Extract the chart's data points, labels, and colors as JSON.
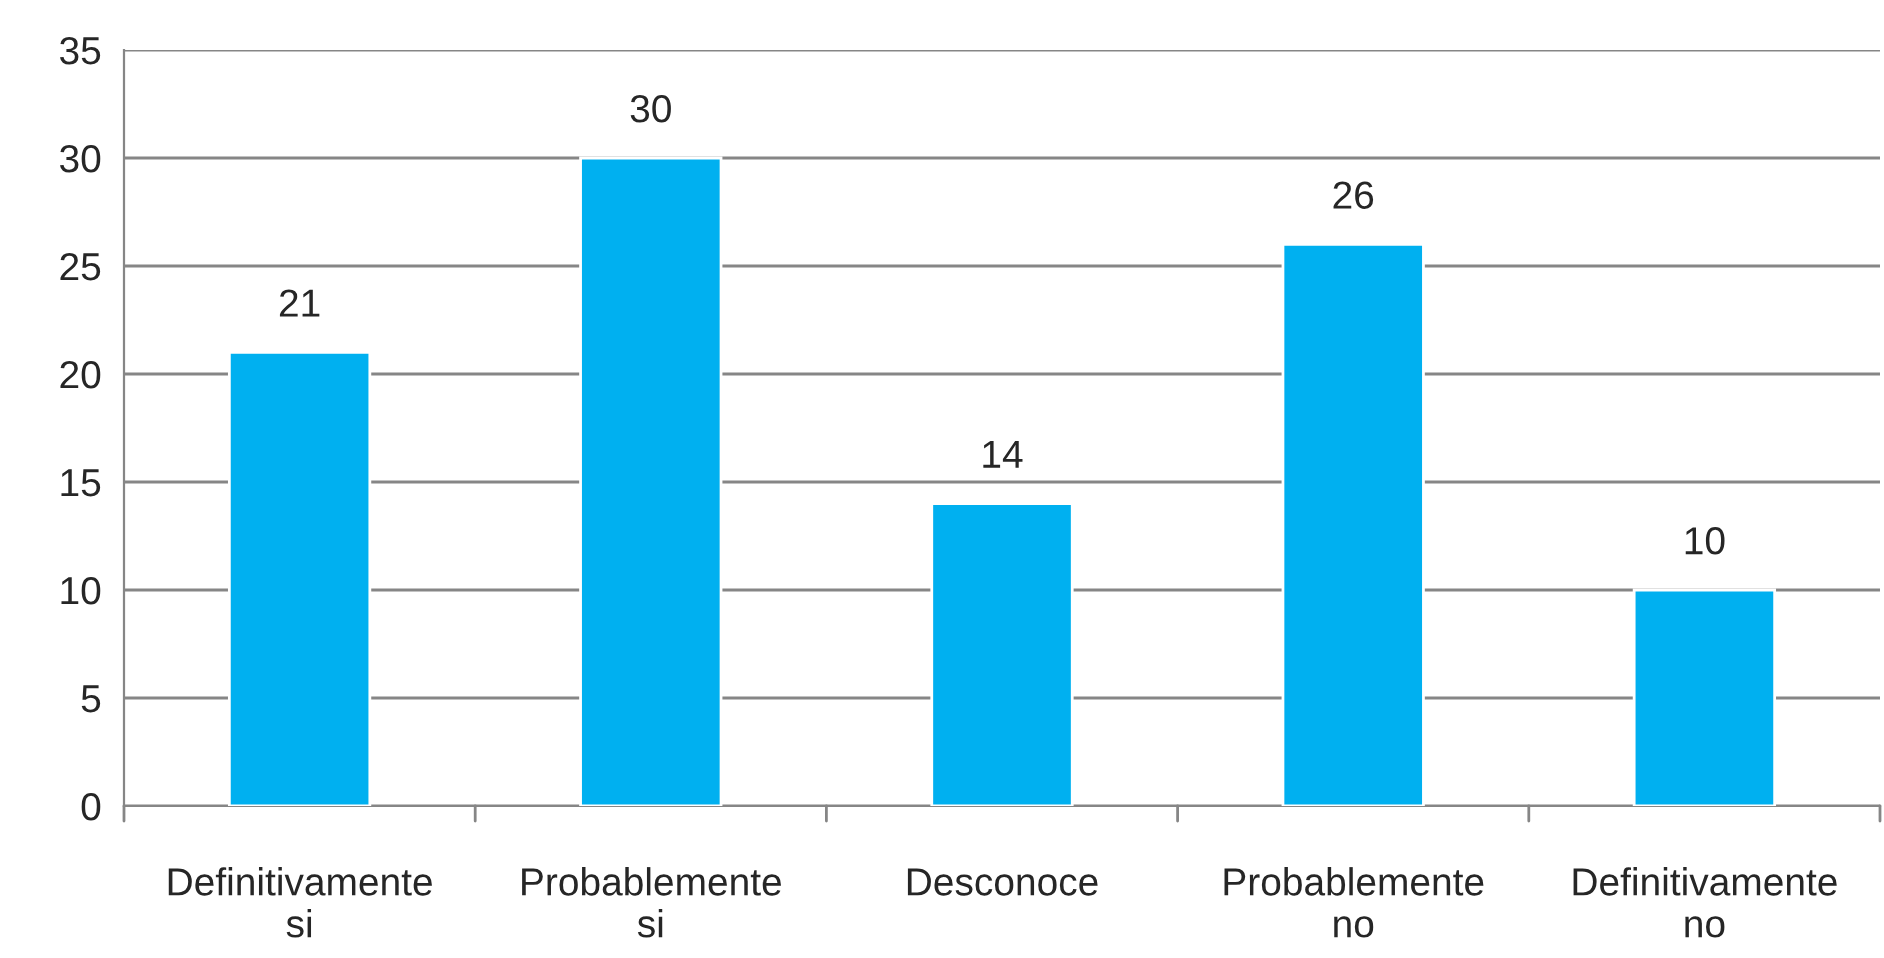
{
  "chart_data": {
    "type": "bar",
    "categories": [
      "Definitivamente si",
      "Probablemente si",
      "Desconoce",
      "Probablemente no",
      "Definitivamente no"
    ],
    "values": [
      21,
      30,
      14,
      26,
      10
    ],
    "color": "#00b0f0",
    "ylim": [
      0,
      35
    ],
    "yticks": [
      0,
      5,
      10,
      15,
      20,
      25,
      30,
      35
    ],
    "grid": "y",
    "data_labels": true
  }
}
